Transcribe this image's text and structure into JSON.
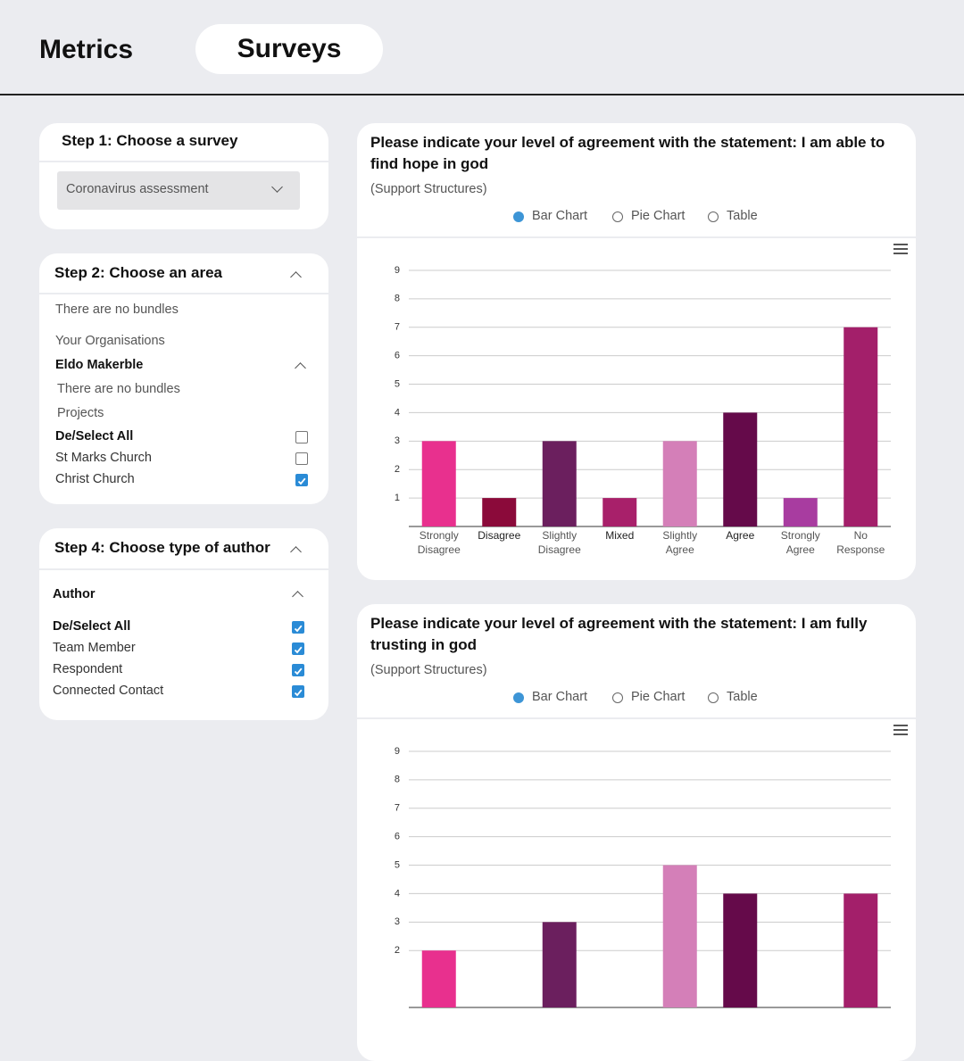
{
  "header": {
    "tabs": [
      "Metrics",
      "Surveys"
    ],
    "active_tab": 1
  },
  "step1": {
    "title": "Step 1: Choose a survey",
    "selected": "Coronavirus assessment"
  },
  "step2": {
    "title": "Step 2: Choose an area",
    "no_bundles": "There are no bundles",
    "organisations_label": "Your Organisations",
    "organisation": "Eldo Makerble",
    "org_no_bundles": "There are no bundles",
    "projects_label": "Projects",
    "items": [
      {
        "label": "De/Select All",
        "checked": false,
        "bold": true
      },
      {
        "label": "St Marks Church",
        "checked": false
      },
      {
        "label": "Christ Church",
        "checked": true
      }
    ]
  },
  "step4": {
    "title": "Step 4: Choose type of author",
    "group": "Author",
    "items": [
      {
        "label": "De/Select All",
        "checked": true,
        "bold": true
      },
      {
        "label": "Team Member",
        "checked": true
      },
      {
        "label": "Respondent",
        "checked": true
      },
      {
        "label": "Connected Contact",
        "checked": true
      }
    ]
  },
  "chart_data": [
    {
      "type": "bar",
      "title": "Please indicate your level of agreement with the statement: I am able to find hope in god",
      "subtitle": "(Support Structures)",
      "view_options": [
        "Bar Chart",
        "Pie Chart",
        "Table"
      ],
      "selected_view": 0,
      "categories": [
        "Strongly Disagree",
        "Disagree",
        "Slightly Disagree",
        "Mixed",
        "Slightly Agree",
        "Agree",
        "Strongly Agree",
        "No Response"
      ],
      "values": [
        3,
        1,
        3,
        1,
        3,
        4,
        1,
        7
      ],
      "colors": [
        "#e8308e",
        "#8b0a3a",
        "#6b1f5e",
        "#a8206a",
        "#d47fb8",
        "#650a4a",
        "#a83ca0",
        "#a31f6a"
      ],
      "ylim": [
        0,
        9.5
      ],
      "yticks": [
        1,
        2,
        3,
        4,
        5,
        6,
        7,
        8,
        9
      ],
      "grid": true
    },
    {
      "type": "bar",
      "title": "Please indicate your level of agreement with the statement: I am fully trusting in god",
      "subtitle": "(Support Structures)",
      "view_options": [
        "Bar Chart",
        "Pie Chart",
        "Table"
      ],
      "selected_view": 0,
      "values": [
        2,
        null,
        3,
        null,
        5,
        4,
        null,
        4
      ],
      "colors": [
        "#e8308e",
        "#8b0a3a",
        "#6b1f5e",
        "#a8206a",
        "#d47fb8",
        "#650a4a",
        "#a83ca0",
        "#a31f6a"
      ],
      "ylim": [
        0,
        9.5
      ],
      "yticks": [
        2,
        3,
        4,
        5,
        6,
        7,
        8,
        9
      ],
      "grid": true
    }
  ]
}
